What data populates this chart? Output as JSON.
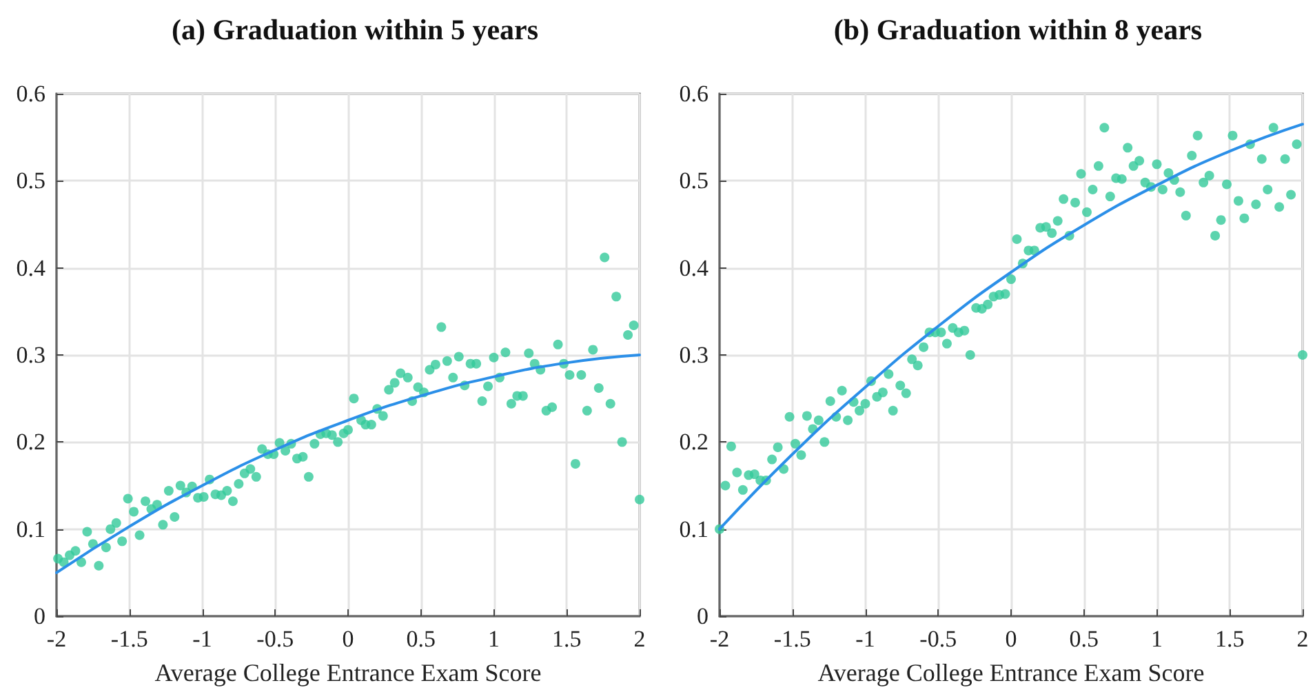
{
  "chart_data": [
    {
      "type": "scatter",
      "title": "(a) Graduation within 5 years",
      "xlabel": "Average College Entrance Exam Score",
      "xlim": [
        -2,
        2
      ],
      "xticks": [
        -2,
        -1.5,
        -1,
        -0.5,
        0,
        0.5,
        1,
        1.5,
        2
      ],
      "ylim": [
        0,
        0.6
      ],
      "yticks": [
        0,
        0.1,
        0.2,
        0.3,
        0.4,
        0.5,
        0.6
      ],
      "grid": true,
      "series": [
        {
          "marker": "circle",
          "color": "#33c99a",
          "x": [
            -1.99,
            -1.95,
            -1.91,
            -1.87,
            -1.83,
            -1.79,
            -1.75,
            -1.71,
            -1.66,
            -1.63,
            -1.59,
            -1.55,
            -1.51,
            -1.47,
            -1.43,
            -1.39,
            -1.35,
            -1.31,
            -1.27,
            -1.23,
            -1.19,
            -1.15,
            -1.11,
            -1.07,
            -1.03,
            -0.99,
            -0.95,
            -0.91,
            -0.87,
            -0.83,
            -0.79,
            -0.75,
            -0.71,
            -0.67,
            -0.63,
            -0.59,
            -0.55,
            -0.51,
            -0.47,
            -0.43,
            -0.39,
            -0.35,
            -0.31,
            -0.27,
            -0.23,
            -0.19,
            -0.15,
            -0.11,
            -0.07,
            -0.03,
            0,
            0.04,
            0.09,
            0.12,
            0.16,
            0.2,
            0.24,
            0.28,
            0.32,
            0.36,
            0.41,
            0.44,
            0.48,
            0.52,
            0.56,
            0.6,
            0.64,
            0.68,
            0.72,
            0.76,
            0.8,
            0.84,
            0.88,
            0.92,
            0.96,
            1.0,
            1.04,
            1.08,
            1.12,
            1.16,
            1.2,
            1.24,
            1.28,
            1.32,
            1.36,
            1.4,
            1.44,
            1.48,
            1.52,
            1.56,
            1.6,
            1.64,
            1.68,
            1.72,
            1.76,
            1.8,
            1.84,
            1.88,
            1.92,
            1.96,
            2.0
          ],
          "values": [
            0.066,
            0.062,
            0.07,
            0.075,
            0.062,
            0.097,
            0.083,
            0.058,
            0.079,
            0.1,
            0.107,
            0.086,
            0.135,
            0.12,
            0.093,
            0.132,
            0.123,
            0.128,
            0.105,
            0.144,
            0.114,
            0.15,
            0.142,
            0.149,
            0.136,
            0.137,
            0.157,
            0.14,
            0.139,
            0.144,
            0.132,
            0.152,
            0.164,
            0.169,
            0.16,
            0.192,
            0.186,
            0.186,
            0.199,
            0.19,
            0.198,
            0.181,
            0.183,
            0.16,
            0.198,
            0.209,
            0.21,
            0.208,
            0.2,
            0.21,
            0.214,
            0.25,
            0.225,
            0.22,
            0.22,
            0.238,
            0.23,
            0.26,
            0.268,
            0.279,
            0.274,
            0.247,
            0.263,
            0.257,
            0.283,
            0.289,
            0.332,
            0.293,
            0.274,
            0.298,
            0.265,
            0.29,
            0.29,
            0.247,
            0.264,
            0.297,
            0.274,
            0.303,
            0.244,
            0.253,
            0.253,
            0.302,
            0.29,
            0.283,
            0.236,
            0.24,
            0.312,
            0.29,
            0.277,
            0.175,
            0.277,
            0.236,
            0.306,
            0.262,
            0.412,
            0.244,
            0.367,
            0.2,
            0.323,
            0.334,
            0.134
          ]
        },
        {
          "type": "line",
          "marker": "none",
          "color": "#2b8fe8",
          "x": [
            -2,
            -1.5,
            -1,
            -0.5,
            0,
            0.5,
            1,
            1.5,
            2
          ],
          "values": [
            0.05,
            0.103,
            0.15,
            0.191,
            0.225,
            0.253,
            0.275,
            0.291,
            0.3
          ]
        }
      ]
    },
    {
      "type": "scatter",
      "title": "(b) Graduation within 8 years",
      "xlabel": "Average College Entrance Exam Score",
      "xlim": [
        -2,
        2
      ],
      "xticks": [
        -2,
        -1.5,
        -1,
        -0.5,
        0,
        0.5,
        1,
        1.5,
        2
      ],
      "ylim": [
        0,
        0.6
      ],
      "yticks": [
        0,
        0.1,
        0.2,
        0.3,
        0.4,
        0.5,
        0.6
      ],
      "grid": true,
      "series": [
        {
          "marker": "circle",
          "color": "#33c99a",
          "x": [
            -2.0,
            -1.96,
            -1.92,
            -1.88,
            -1.84,
            -1.8,
            -1.76,
            -1.72,
            -1.68,
            -1.64,
            -1.6,
            -1.56,
            -1.52,
            -1.48,
            -1.44,
            -1.4,
            -1.36,
            -1.32,
            -1.28,
            -1.24,
            -1.2,
            -1.16,
            -1.12,
            -1.08,
            -1.04,
            -1,
            -0.96,
            -0.92,
            -0.88,
            -0.84,
            -0.81,
            -0.76,
            -0.72,
            -0.68,
            -0.64,
            -0.6,
            -0.56,
            -0.52,
            -0.48,
            -0.44,
            -0.4,
            -0.36,
            -0.32,
            -0.28,
            -0.24,
            -0.2,
            -0.16,
            -0.12,
            -0.08,
            -0.04,
            0.0,
            0.04,
            0.08,
            0.12,
            0.16,
            0.2,
            0.24,
            0.28,
            0.32,
            0.36,
            0.4,
            0.44,
            0.48,
            0.52,
            0.56,
            0.6,
            0.64,
            0.68,
            0.72,
            0.76,
            0.8,
            0.84,
            0.88,
            0.92,
            0.96,
            1.0,
            1.04,
            1.08,
            1.12,
            1.16,
            1.2,
            1.24,
            1.28,
            1.32,
            1.36,
            1.4,
            1.44,
            1.48,
            1.52,
            1.56,
            1.6,
            1.64,
            1.68,
            1.72,
            1.76,
            1.8,
            1.84,
            1.88,
            1.92,
            1.96,
            2.0
          ],
          "values": [
            0.1,
            0.15,
            0.195,
            0.165,
            0.145,
            0.162,
            0.163,
            0.156,
            0.156,
            0.18,
            0.194,
            0.169,
            0.229,
            0.198,
            0.185,
            0.23,
            0.215,
            0.225,
            0.2,
            0.247,
            0.229,
            0.259,
            0.225,
            0.246,
            0.236,
            0.244,
            0.27,
            0.252,
            0.257,
            0.278,
            0.236,
            0.265,
            0.256,
            0.295,
            0.288,
            0.309,
            0.326,
            0.326,
            0.326,
            0.313,
            0.331,
            0.326,
            0.328,
            0.3,
            0.354,
            0.353,
            0.358,
            0.367,
            0.369,
            0.37,
            0.387,
            0.433,
            0.405,
            0.42,
            0.42,
            0.446,
            0.447,
            0.44,
            0.454,
            0.479,
            0.437,
            0.475,
            0.508,
            0.464,
            0.49,
            0.517,
            0.561,
            0.482,
            0.503,
            0.502,
            0.538,
            0.517,
            0.523,
            0.498,
            0.493,
            0.519,
            0.49,
            0.509,
            0.501,
            0.487,
            0.46,
            0.529,
            0.552,
            0.498,
            0.506,
            0.437,
            0.455,
            0.496,
            0.552,
            0.477,
            0.457,
            0.542,
            0.473,
            0.525,
            0.49,
            0.561,
            0.47,
            0.525,
            0.484,
            0.542,
            0.3
          ]
        },
        {
          "type": "line",
          "marker": "none",
          "color": "#2b8fe8",
          "x": [
            -2,
            -1.5,
            -1,
            -0.5,
            0,
            0.5,
            1,
            1.5,
            2
          ],
          "values": [
            0.1,
            0.186,
            0.263,
            0.333,
            0.395,
            0.449,
            0.495,
            0.534,
            0.565
          ]
        }
      ]
    }
  ]
}
